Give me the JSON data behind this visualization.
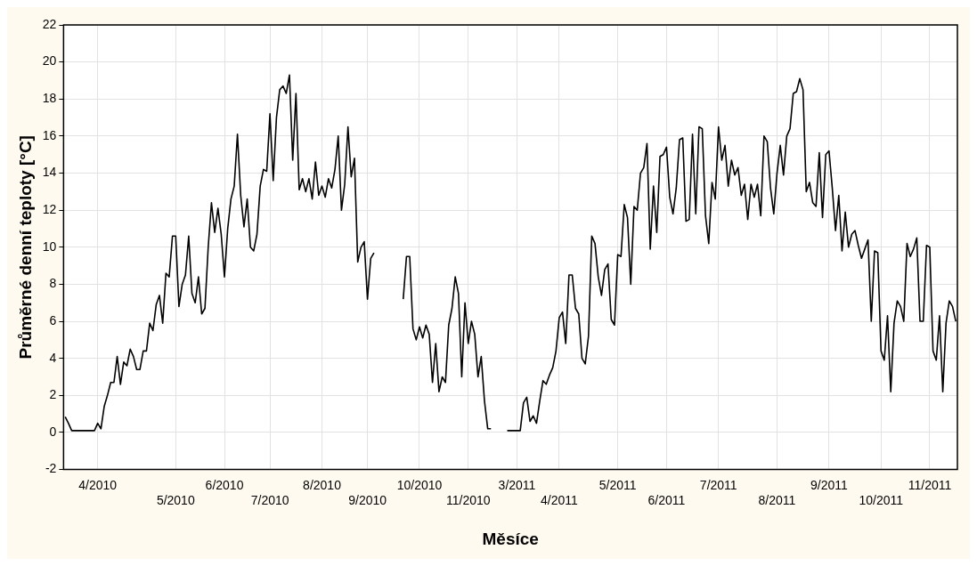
{
  "chart_data": {
    "type": "line",
    "xlabel": "Měsíce",
    "ylabel": "Průměrné denní teploty [°C]",
    "color": "#000000",
    "line_style": "solid",
    "grid": true,
    "categories": [
      null,
      null,
      null,
      null,
      null,
      null,
      null,
      null,
      null,
      null,
      "4/2010",
      null,
      null,
      null,
      null,
      null,
      null,
      null,
      null,
      null,
      null,
      null,
      null,
      null,
      null,
      null,
      null,
      null,
      null,
      null,
      null,
      null,
      null,
      null,
      "5/2010",
      null,
      null,
      null,
      null,
      null,
      null,
      null,
      null,
      null,
      null,
      null,
      null,
      null,
      null,
      "6/2010",
      null,
      null,
      null,
      null,
      null,
      null,
      null,
      null,
      null,
      null,
      null,
      null,
      null,
      "7/2010",
      null,
      null,
      null,
      null,
      null,
      null,
      null,
      null,
      null,
      null,
      null,
      null,
      null,
      null,
      null,
      "8/2010",
      null,
      null,
      null,
      null,
      null,
      null,
      null,
      null,
      null,
      null,
      null,
      null,
      null,
      "9/2010",
      null,
      null,
      null,
      null,
      null,
      null,
      null,
      null,
      null,
      null,
      null,
      null,
      null,
      null,
      null,
      "10/2010",
      null,
      null,
      null,
      null,
      null,
      null,
      null,
      null,
      null,
      null,
      null,
      null,
      null,
      null,
      "11/2010",
      null,
      null,
      null,
      null,
      null,
      null,
      null,
      null,
      null,
      null,
      null,
      null,
      null,
      null,
      "3/2011",
      null,
      null,
      null,
      null,
      null,
      null,
      null,
      null,
      null,
      null,
      null,
      null,
      "4/2011",
      null,
      null,
      null,
      null,
      null,
      null,
      null,
      null,
      null,
      null,
      null,
      null,
      null,
      null,
      null,
      null,
      null,
      "5/2011",
      null,
      null,
      null,
      null,
      null,
      null,
      null,
      null,
      null,
      null,
      null,
      null,
      null,
      null,
      "6/2011",
      null,
      null,
      null,
      null,
      null,
      null,
      null,
      null,
      null,
      null,
      null,
      null,
      null,
      null,
      null,
      "7/2011",
      null,
      null,
      null,
      null,
      null,
      null,
      null,
      null,
      null,
      null,
      null,
      null,
      null,
      null,
      null,
      null,
      null,
      "8/2011",
      null,
      null,
      null,
      null,
      null,
      null,
      null,
      null,
      null,
      null,
      null,
      null,
      null,
      null,
      null,
      "9/2011",
      null,
      null,
      null,
      null,
      null,
      null,
      null,
      null,
      null,
      null,
      null,
      null,
      null,
      null,
      null,
      "10/2011",
      null,
      null,
      null,
      null,
      null,
      null,
      null,
      null,
      null,
      null,
      null,
      null,
      null,
      null,
      "11/2011",
      null,
      null,
      null,
      null,
      null,
      null,
      null,
      null
    ],
    "values": [
      0.85,
      0.5,
      0.1,
      0.1,
      0.1,
      0.1,
      0.1,
      0.1,
      0.1,
      0.1,
      0.5,
      0.2,
      1.4,
      2.0,
      2.7,
      2.7,
      4.1,
      2.6,
      3.8,
      3.6,
      4.5,
      4.1,
      3.4,
      3.4,
      4.4,
      4.4,
      5.9,
      5.5,
      6.9,
      7.4,
      5.9,
      8.6,
      8.4,
      10.6,
      10.6,
      6.8,
      8.0,
      8.5,
      10.6,
      7.5,
      7.0,
      8.4,
      6.4,
      6.7,
      10.0,
      12.4,
      10.8,
      12.1,
      10.7,
      8.4,
      11.0,
      12.6,
      13.3,
      16.1,
      12.8,
      11.1,
      12.6,
      10.0,
      9.8,
      10.7,
      13.3,
      14.2,
      14.1,
      17.2,
      13.6,
      17.0,
      18.5,
      18.7,
      18.3,
      19.3,
      14.7,
      18.3,
      13.1,
      13.7,
      13.0,
      13.7,
      12.6,
      14.6,
      12.8,
      13.3,
      12.7,
      13.7,
      13.2,
      14.2,
      16.0,
      12.0,
      13.4,
      16.5,
      13.8,
      14.8,
      9.2,
      10.0,
      10.3,
      7.2,
      9.4,
      9.7,
      null,
      null,
      null,
      null,
      null,
      null,
      null,
      null,
      7.2,
      9.5,
      9.5,
      5.6,
      5.0,
      5.7,
      5.1,
      5.8,
      5.3,
      2.7,
      4.8,
      2.2,
      3.0,
      2.7,
      5.8,
      6.7,
      8.4,
      7.5,
      3.0,
      7.0,
      4.8,
      6.0,
      5.3,
      3.0,
      4.1,
      1.7,
      0.2,
      0.2,
      null,
      null,
      null,
      null,
      0.1,
      0.1,
      0.1,
      0.1,
      0.1,
      1.6,
      1.9,
      0.6,
      0.9,
      0.5,
      1.7,
      2.8,
      2.6,
      3.1,
      3.5,
      4.4,
      6.2,
      6.5,
      4.8,
      8.5,
      8.5,
      6.7,
      6.4,
      4.0,
      3.7,
      5.2,
      10.6,
      10.2,
      8.4,
      7.4,
      8.8,
      9.1,
      6.1,
      5.8,
      9.6,
      9.5,
      12.3,
      11.6,
      8.0,
      12.2,
      12.0,
      14.0,
      14.3,
      15.6,
      9.9,
      13.3,
      10.8,
      14.9,
      15.0,
      15.4,
      12.7,
      11.8,
      13.2,
      15.8,
      15.9,
      11.4,
      11.5,
      16.1,
      11.8,
      16.5,
      16.4,
      11.7,
      10.2,
      13.5,
      12.6,
      16.5,
      14.7,
      15.5,
      13.3,
      14.7,
      13.9,
      14.3,
      12.8,
      13.4,
      11.5,
      13.4,
      12.7,
      13.4,
      11.7,
      16.0,
      15.7,
      13.2,
      11.8,
      14.0,
      15.5,
      13.9,
      16.0,
      16.4,
      18.3,
      18.4,
      19.1,
      18.5,
      13.0,
      13.5,
      12.4,
      12.2,
      15.1,
      11.6,
      15.0,
      15.2,
      13.2,
      10.9,
      12.8,
      9.8,
      11.9,
      10.0,
      10.7,
      10.9,
      10.1,
      9.4,
      9.9,
      10.4,
      6.0,
      9.8,
      9.7,
      4.4,
      3.9,
      6.3,
      2.2,
      5.9,
      7.1,
      6.8,
      6.0,
      10.2,
      9.5,
      9.9,
      10.5,
      6.0,
      6.0,
      10.1,
      10.0,
      4.4,
      3.9,
      6.3,
      2.2,
      5.9,
      7.1,
      6.8,
      6.0
    ],
    "ylim": [
      -2,
      22
    ],
    "yticks": [
      -2,
      0,
      2,
      4,
      6,
      8,
      10,
      12,
      14,
      16,
      18,
      20,
      22
    ],
    "legend": false
  }
}
